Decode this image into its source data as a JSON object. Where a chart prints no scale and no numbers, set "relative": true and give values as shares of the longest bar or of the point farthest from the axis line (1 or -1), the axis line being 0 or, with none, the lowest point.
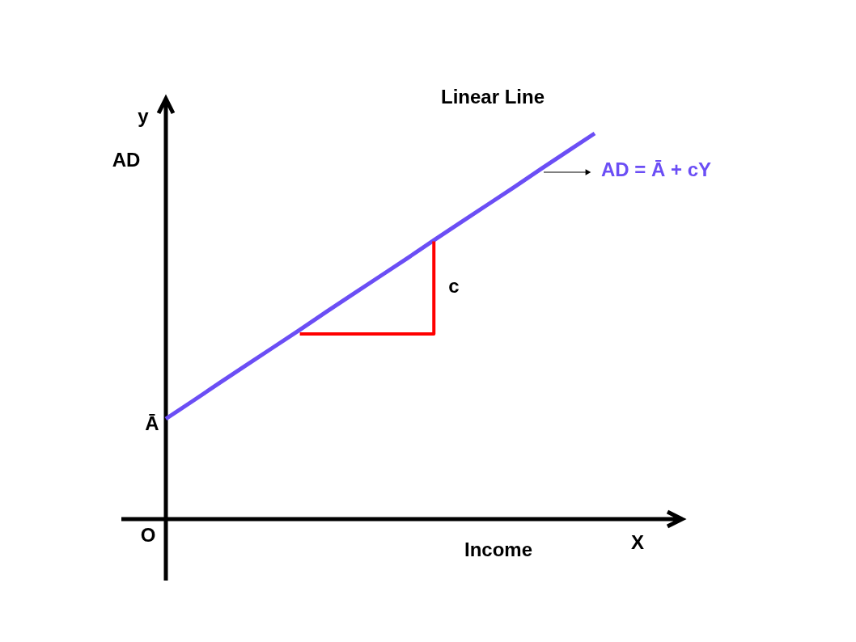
{
  "chart_data": {
    "type": "line",
    "title": "Linear Line",
    "xlabel": "Income",
    "ylabel": "AD",
    "relative": true,
    "categories": [
      null,
      null,
      null,
      null,
      null,
      null,
      null,
      null,
      null,
      null,
      null,
      null,
      null,
      null,
      null,
      null,
      null
    ],
    "series": [
      {
        "name": "AD = Ā + cY",
        "color": "#6b4ef5",
        "values": [
          0.26,
          0.306,
          0.353,
          0.399,
          0.445,
          0.491,
          0.538,
          0.584,
          0.63,
          0.676,
          0.723,
          0.769,
          0.815,
          0.861,
          0.908,
          0.954,
          1.0
        ]
      },
      {
        "type": "step",
        "color": "#ff0000",
        "values": [
          null,
          null,
          null,
          null,
          null,
          0.48,
          null,
          null,
          null,
          null,
          0.72,
          null,
          null,
          null,
          null,
          null,
          null
        ]
      }
    ],
    "annotations": [
      "y",
      "Ā",
      "O",
      "X",
      "c"
    ]
  }
}
